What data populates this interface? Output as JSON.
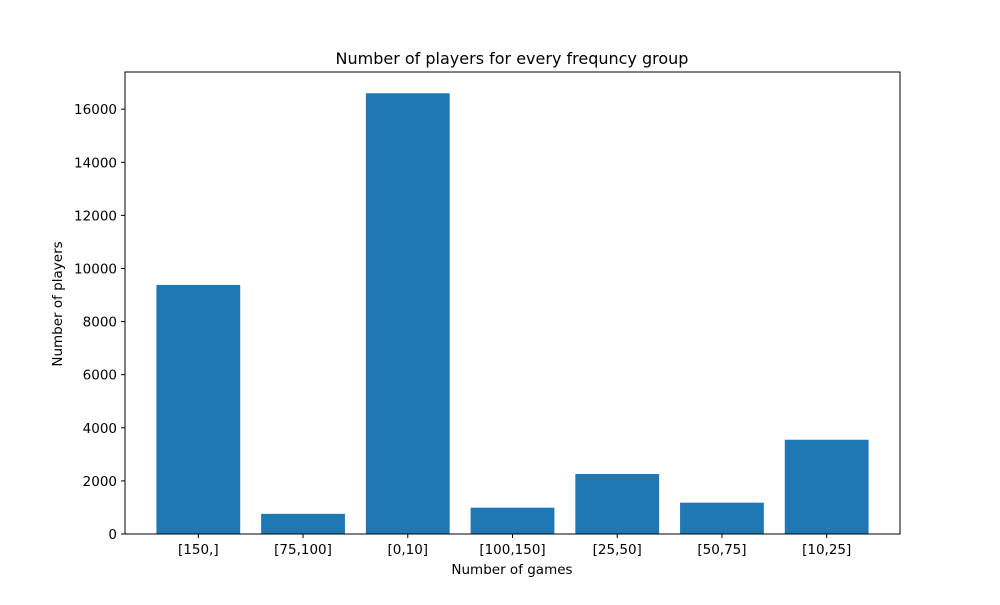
{
  "chart_data": {
    "type": "bar",
    "title": "Number of players for every frequncy group",
    "xlabel": "Number of games",
    "ylabel": "Number of players",
    "categories": [
      "[150,]",
      "[75,100]",
      "[0,10]",
      "[100,150]",
      "[25,50]",
      "[50,75]",
      "[10,25]"
    ],
    "values": [
      9380,
      760,
      16600,
      990,
      2260,
      1180,
      3550
    ],
    "ylim": [
      0,
      17400
    ],
    "yticks": [
      0,
      2000,
      4000,
      6000,
      8000,
      10000,
      12000,
      14000,
      16000
    ],
    "grid": false,
    "bar_color": "#1f77b4"
  }
}
